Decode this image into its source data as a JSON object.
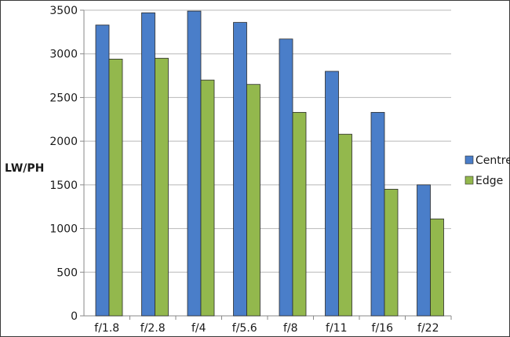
{
  "chart_data": {
    "type": "bar",
    "title": "",
    "xlabel": "",
    "ylabel": "LW/PH",
    "ylim": [
      0,
      3500
    ],
    "ytick_step": 500,
    "grid": "horizontal",
    "legend": "right",
    "categories": [
      "f/1.8",
      "f/2.8",
      "f/4",
      "f/5.6",
      "f/8",
      "f/11",
      "f/16",
      "f/22"
    ],
    "series": [
      {
        "name": "Centre",
        "color": "#4a7ec9",
        "values": [
          3330,
          3470,
          3490,
          3360,
          3170,
          2800,
          2330,
          1500
        ]
      },
      {
        "name": "Edge",
        "color": "#93b84d",
        "values": [
          2940,
          2950,
          2700,
          2650,
          2330,
          2080,
          1450,
          1110
        ]
      }
    ]
  }
}
